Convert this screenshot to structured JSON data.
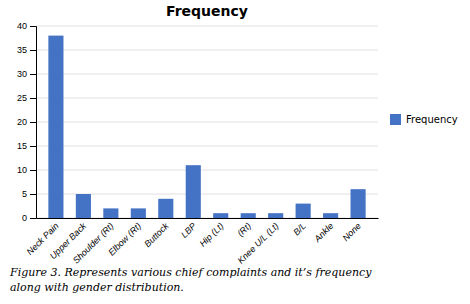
{
  "chart_data": {
    "type": "bar",
    "title": "Frequency",
    "categories": [
      "Neck Pain",
      "Upper Back",
      "Shoulder (Rt)",
      "Elbow (Rt)",
      "Buttock",
      "LBP",
      "Hip (Lt)",
      "(Rt)",
      "Knee U/L (Lt)",
      "B/L",
      "Ankle",
      "None"
    ],
    "series": [
      {
        "name": "Frequency",
        "color": "#4472C4",
        "values": [
          38,
          5,
          2,
          2,
          4,
          11,
          1,
          1,
          1,
          3,
          1,
          6
        ]
      }
    ],
    "ylim": [
      0,
      40
    ],
    "yticks": [
      0,
      5,
      10,
      15,
      20,
      25,
      30,
      35,
      40
    ],
    "grid": true,
    "legend": "right",
    "annotations": [
      "Figure 3.  Represents various chief complaints and it’s frequency",
      "along with gender distribution."
    ]
  }
}
